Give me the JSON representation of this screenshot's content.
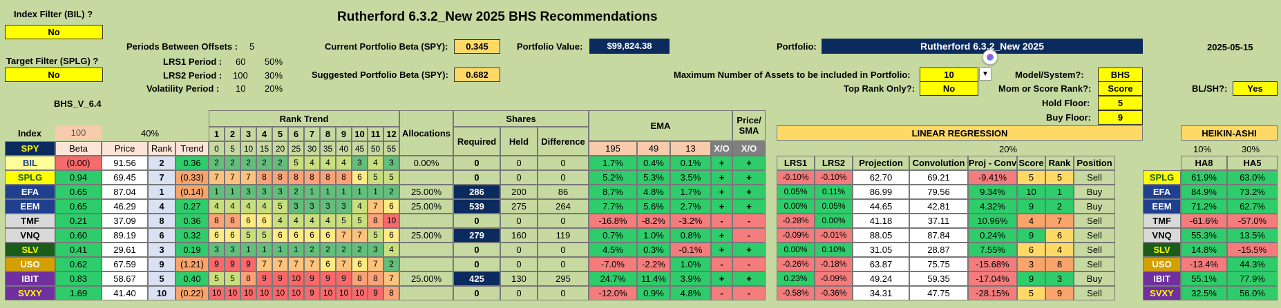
{
  "title": "Rutherford 6.3.2_New 2025 BHS Recommendations",
  "date": "2025-05-15",
  "version": "BHS_V_6.4",
  "filters": {
    "index_filter_label": "Index Filter (BIL) ?",
    "index_filter_value": "No",
    "target_filter_label": "Target Filter (SPLG) ?",
    "target_filter_value": "No"
  },
  "periods": {
    "offsets_label": "Periods Between Offsets :",
    "offsets_value": "5",
    "lrs1_label": "LRS1 Period :",
    "lrs1_value": "60",
    "lrs1_pct": "50%",
    "lrs2_label": "LRS2 Period :",
    "lrs2_value": "100",
    "lrs2_pct": "30%",
    "vol_label": "Volatility Period :",
    "vol_value": "10",
    "vol_pct": "20%"
  },
  "beta": {
    "current_label": "Current Portfolio Beta (SPY):",
    "current_value": "0.345",
    "suggested_label": "Suggested Portfolio Beta (SPY):",
    "suggested_value": "0.682"
  },
  "portfolio_value": {
    "label": "Portfolio Value:",
    "value": "$99,824.38"
  },
  "portfolio": {
    "label": "Portfolio:",
    "value": "Rutherford 6.3.2_New 2025"
  },
  "settings": {
    "max_assets_label": "Maximum Number of Assets to be included in Portfolio:",
    "max_assets_value": "10",
    "top_rank_label": "Top Rank Only?:",
    "top_rank_value": "No",
    "model_label": "Model/System?:",
    "model_value": "BHS",
    "mom_label": "Mom or Score Rank?:",
    "mom_value": "Score",
    "hold_label": "Hold Floor:",
    "hold_value": "5",
    "buy_label": "Buy Floor:",
    "buy_value": "9",
    "blsh_label": "BL/SH?:",
    "blsh_value": "Yes"
  },
  "headers": {
    "index": "Index",
    "index_val": "100",
    "beta_pct": "40%",
    "rank_trend": "Rank Trend",
    "allocations": "Allocations",
    "shares": "Shares",
    "ema": "EMA",
    "price_sma": "Price/ SMA",
    "linreg": "LINEAR REGRESSION",
    "linreg_pct": "20%",
    "heikin": "HEIKIN-ASHI",
    "ha8_pct": "10%",
    "ha5_pct": "30%",
    "spy": "SPY",
    "beta": "Beta",
    "price": "Price",
    "rank": "Rank",
    "trend": "Trend",
    "required": "Required",
    "held": "Held",
    "difference": "Difference",
    "ema195": "195",
    "ema49": "49",
    "ema13": "13",
    "xo": "X/O",
    "xo2": "X/O",
    "lrs1": "LRS1",
    "lrs2": "LRS2",
    "projection": "Projection",
    "convolution": "Convolution",
    "projconv": "Proj - Conv",
    "score": "Score",
    "rank2": "Rank",
    "position": "Position",
    "ha8": "HA8",
    "ha5": "HA5",
    "rt_nums": [
      "1",
      "2",
      "3",
      "4",
      "5",
      "6",
      "7",
      "8",
      "9",
      "10",
      "11",
      "12"
    ],
    "rt_offsets": [
      "0",
      "5",
      "10",
      "15",
      "20",
      "25",
      "30",
      "35",
      "40",
      "45",
      "50",
      "55"
    ]
  },
  "rows": [
    {
      "sym": "BIL",
      "beta": "(0.00)",
      "price": "91.56",
      "rank": "2",
      "trend": "0.36",
      "rt": [
        "2",
        "2",
        "2",
        "2",
        "2",
        "5",
        "4",
        "4",
        "4",
        "3",
        "4",
        "3"
      ],
      "alloc": "0.00%",
      "req": "0",
      "held": "0",
      "diff": "0",
      "e195": "1.7%",
      "e49": "0.4%",
      "e13": "0.1%",
      "xo": "+",
      "xo2": "+",
      "lrs1": "",
      "lrs2": "",
      "proj": "",
      "conv": "",
      "pc": "",
      "score": "",
      "rank2": "",
      "pos": "",
      "ha8": "",
      "ha5": ""
    },
    {
      "sym": "SPLG",
      "beta": "0.94",
      "price": "69.45",
      "rank": "7",
      "trend": "(0.33)",
      "rt": [
        "7",
        "7",
        "7",
        "8",
        "8",
        "8",
        "8",
        "8",
        "8",
        "6",
        "5",
        "5"
      ],
      "alloc": "",
      "req": "0",
      "held": "0",
      "diff": "0",
      "e195": "5.2%",
      "e49": "5.3%",
      "e13": "3.5%",
      "xo": "+",
      "xo2": "+",
      "lrs1": "-0.10%",
      "lrs2": "-0.10%",
      "proj": "62.70",
      "conv": "69.21",
      "pc": "-9.41%",
      "score": "5",
      "rank2": "5",
      "pos": "Sell",
      "ha8": "61.9%",
      "ha5": "63.0%"
    },
    {
      "sym": "EFA",
      "beta": "0.65",
      "price": "87.04",
      "rank": "1",
      "trend": "(0.14)",
      "rt": [
        "1",
        "1",
        "3",
        "3",
        "3",
        "2",
        "1",
        "1",
        "1",
        "1",
        "1",
        "2"
      ],
      "alloc": "25.00%",
      "req": "286",
      "held": "200",
      "diff": "86",
      "e195": "8.7%",
      "e49": "4.8%",
      "e13": "1.7%",
      "xo": "+",
      "xo2": "+",
      "lrs1": "0.05%",
      "lrs2": "0.11%",
      "proj": "86.99",
      "conv": "79.56",
      "pc": "9.34%",
      "score": "10",
      "rank2": "1",
      "pos": "Buy",
      "ha8": "84.9%",
      "ha5": "73.2%"
    },
    {
      "sym": "EEM",
      "beta": "0.65",
      "price": "46.29",
      "rank": "4",
      "trend": "0.27",
      "rt": [
        "4",
        "4",
        "4",
        "4",
        "5",
        "3",
        "3",
        "3",
        "3",
        "4",
        "7",
        "6"
      ],
      "alloc": "25.00%",
      "req": "539",
      "held": "275",
      "diff": "264",
      "e195": "7.7%",
      "e49": "5.6%",
      "e13": "2.7%",
      "xo": "+",
      "xo2": "+",
      "lrs1": "0.00%",
      "lrs2": "0.05%",
      "proj": "44.65",
      "conv": "42.81",
      "pc": "4.32%",
      "score": "9",
      "rank2": "2",
      "pos": "Buy",
      "ha8": "71.2%",
      "ha5": "62.7%"
    },
    {
      "sym": "TMF",
      "beta": "0.21",
      "price": "37.09",
      "rank": "8",
      "trend": "0.36",
      "rt": [
        "8",
        "8",
        "6",
        "6",
        "4",
        "4",
        "4",
        "4",
        "5",
        "5",
        "8",
        "10"
      ],
      "alloc": "",
      "req": "0",
      "held": "0",
      "diff": "0",
      "e195": "-16.8%",
      "e49": "-8.2%",
      "e13": "-3.2%",
      "xo": "-",
      "xo2": "-",
      "lrs1": "-0.28%",
      "lrs2": "0.00%",
      "proj": "41.18",
      "conv": "37.11",
      "pc": "10.96%",
      "score": "4",
      "rank2": "7",
      "pos": "Sell",
      "ha8": "-61.6%",
      "ha5": "-57.0%"
    },
    {
      "sym": "VNQ",
      "beta": "0.60",
      "price": "89.19",
      "rank": "6",
      "trend": "0.32",
      "rt": [
        "6",
        "6",
        "5",
        "5",
        "6",
        "6",
        "6",
        "6",
        "7",
        "7",
        "5",
        "6"
      ],
      "alloc": "25.00%",
      "req": "279",
      "held": "160",
      "diff": "119",
      "e195": "0.7%",
      "e49": "1.0%",
      "e13": "0.8%",
      "xo": "+",
      "xo2": "-",
      "lrs1": "-0.09%",
      "lrs2": "-0.01%",
      "proj": "88.05",
      "conv": "87.84",
      "pc": "0.24%",
      "score": "9",
      "rank2": "6",
      "pos": "Sell",
      "ha8": "55.3%",
      "ha5": "13.5%"
    },
    {
      "sym": "SLV",
      "beta": "0.41",
      "price": "29.61",
      "rank": "3",
      "trend": "0.19",
      "rt": [
        "3",
        "3",
        "1",
        "1",
        "1",
        "1",
        "2",
        "2",
        "2",
        "2",
        "3",
        "4"
      ],
      "alloc": "",
      "req": "0",
      "held": "0",
      "diff": "0",
      "e195": "4.5%",
      "e49": "0.3%",
      "e13": "-0.1%",
      "xo": "+",
      "xo2": "+",
      "lrs1": "0.00%",
      "lrs2": "0.10%",
      "proj": "31.05",
      "conv": "28.87",
      "pc": "7.55%",
      "score": "6",
      "rank2": "4",
      "pos": "Sell",
      "ha8": "14.8%",
      "ha5": "-15.5%"
    },
    {
      "sym": "USO",
      "beta": "0.62",
      "price": "67.59",
      "rank": "9",
      "trend": "(1.21)",
      "rt": [
        "9",
        "9",
        "9",
        "7",
        "7",
        "7",
        "7",
        "6",
        "7",
        "6",
        "7",
        "2"
      ],
      "alloc": "",
      "req": "0",
      "held": "0",
      "diff": "0",
      "e195": "-7.0%",
      "e49": "-2.2%",
      "e13": "1.0%",
      "xo": "-",
      "xo2": "-",
      "lrs1": "-0.26%",
      "lrs2": "-0.18%",
      "proj": "63.87",
      "conv": "75.75",
      "pc": "-15.68%",
      "score": "3",
      "rank2": "8",
      "pos": "Sell",
      "ha8": "-13.4%",
      "ha5": "44.3%"
    },
    {
      "sym": "IBIT",
      "beta": "0.83",
      "price": "58.67",
      "rank": "5",
      "trend": "0.40",
      "rt": [
        "5",
        "5",
        "8",
        "9",
        "9",
        "10",
        "9",
        "9",
        "9",
        "8",
        "8",
        "7"
      ],
      "alloc": "25.00%",
      "req": "425",
      "held": "130",
      "diff": "295",
      "e195": "24.7%",
      "e49": "11.4%",
      "e13": "3.9%",
      "xo": "+",
      "xo2": "+",
      "lrs1": "0.23%",
      "lrs2": "-0.09%",
      "proj": "49.24",
      "conv": "59.35",
      "pc": "-17.04%",
      "score": "9",
      "rank2": "3",
      "pos": "Buy",
      "ha8": "55.1%",
      "ha5": "77.9%"
    },
    {
      "sym": "SVXY",
      "beta": "1.69",
      "price": "41.40",
      "rank": "10",
      "trend": "(0.22)",
      "rt": [
        "10",
        "10",
        "10",
        "10",
        "10",
        "10",
        "9",
        "10",
        "10",
        "10",
        "9",
        "8"
      ],
      "alloc": "",
      "req": "0",
      "held": "0",
      "diff": "0",
      "e195": "-12.0%",
      "e49": "0.9%",
      "e13": "4.8%",
      "xo": "-",
      "xo2": "-",
      "lrs1": "-0.58%",
      "lrs2": "-0.36%",
      "proj": "34.31",
      "conv": "47.75",
      "pc": "-28.15%",
      "score": "5",
      "rank2": "9",
      "pos": "Sell",
      "ha8": "32.5%",
      "ha5": "56.0%"
    }
  ],
  "colors": {
    "bg": "#c5d9a0",
    "yellow": "#ffff00",
    "navy": "#0b2a5e",
    "green": "#2ecc6a",
    "red": "#f47c7c",
    "sym_bg": [
      "#ffff99",
      "#ffff00",
      "#1f3f8f",
      "#1f3f8f",
      "#d9d9d9",
      "#d9d9d9",
      "#1a5c1a",
      "#d4a000",
      "#7030a0",
      "#7030a0"
    ],
    "sym_fg": [
      "#1f3f8f",
      "#1a5c1a",
      "#ffffff",
      "#ffffff",
      "#000000",
      "#000000",
      "#ffff00",
      "#ffffff",
      "#ffffff",
      "#ffff00"
    ]
  }
}
